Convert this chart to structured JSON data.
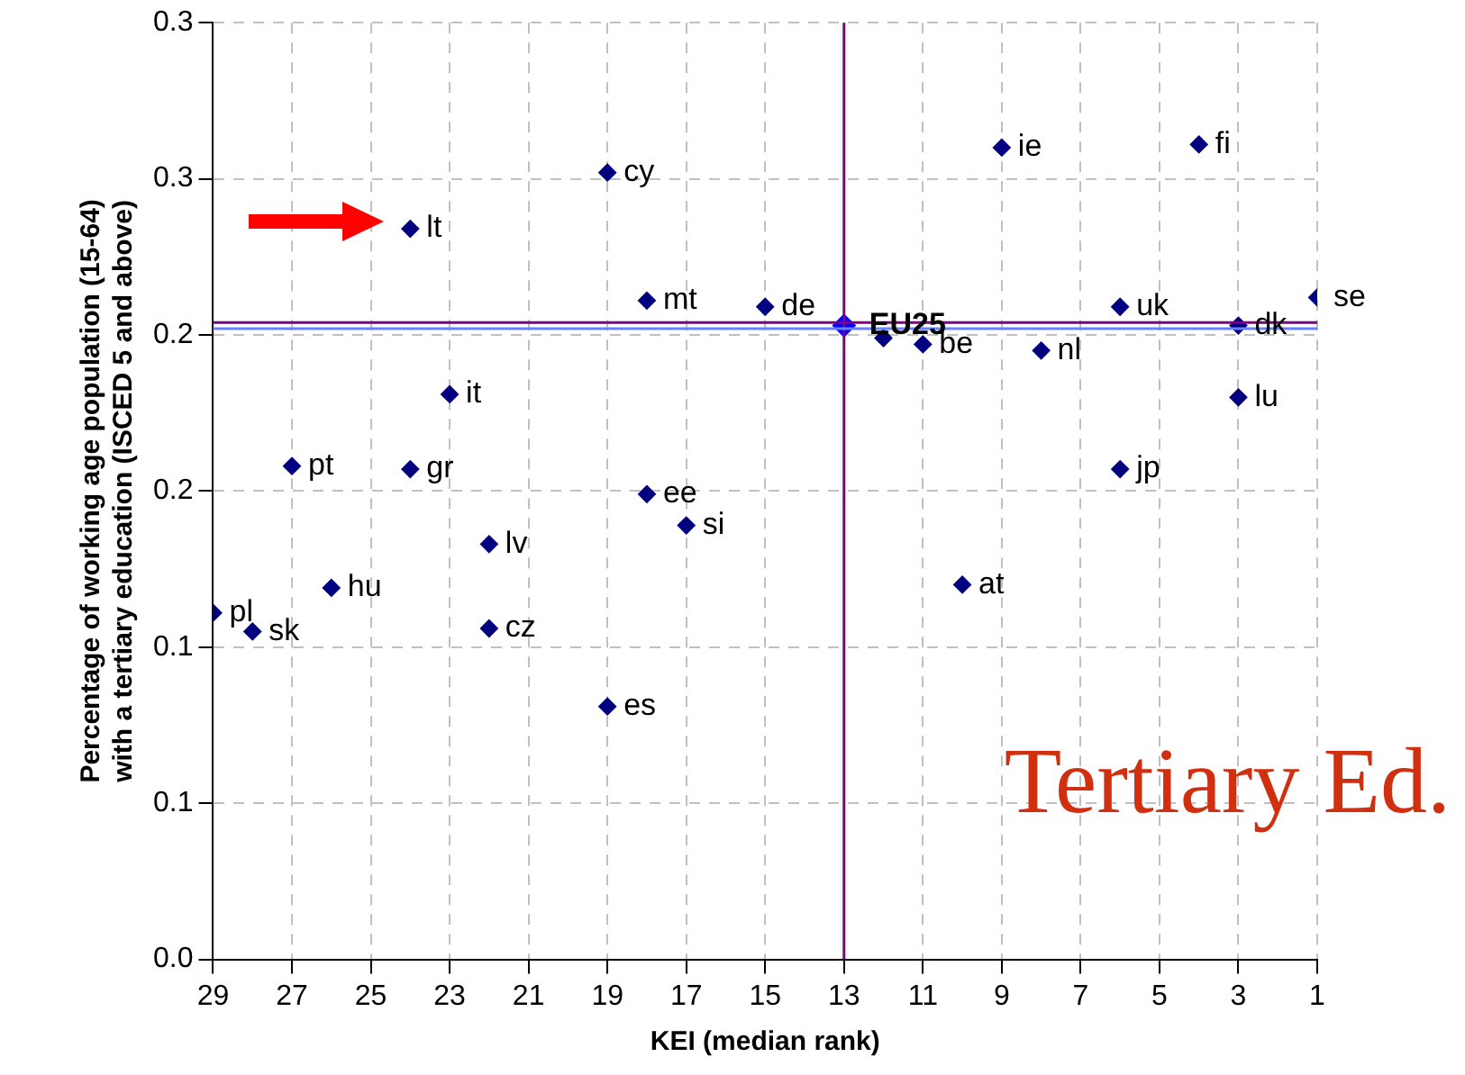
{
  "chart_data": {
    "type": "scatter",
    "xlabel": "KEI (median rank)",
    "ylabel": "Percentage of working age population (15-64)\nwith a tertiary education (ISCED 5 and above)",
    "xlim": [
      29,
      1
    ],
    "xticks": [
      29,
      27,
      25,
      23,
      21,
      19,
      17,
      15,
      13,
      11,
      9,
      7,
      5,
      3,
      1
    ],
    "ylim": [
      0,
      0.3
    ],
    "yticks": [
      {
        "value": 0,
        "label": "0.0"
      },
      {
        "value": 0.05,
        "label": "0.1"
      },
      {
        "value": 0.1,
        "label": "0.1"
      },
      {
        "value": 0.15,
        "label": "0.2"
      },
      {
        "value": 0.2,
        "label": "0.2"
      },
      {
        "value": 0.25,
        "label": "0.3"
      },
      {
        "value": 0.3,
        "label": "0.3"
      }
    ],
    "grid": true,
    "legend": false,
    "marker": "diamond",
    "series": [
      {
        "color": "#000080",
        "x": [
          24,
          19,
          9,
          4,
          18,
          15,
          11,
          8,
          6,
          3,
          1,
          3,
          23,
          27,
          24,
          6,
          18,
          17,
          22,
          26,
          10,
          29,
          28,
          22,
          19,
          12
        ],
        "values": [
          0.234,
          0.252,
          0.26,
          0.261,
          0.211,
          0.209,
          0.197,
          0.195,
          0.209,
          0.203,
          0.212,
          0.18,
          0.181,
          0.158,
          0.157,
          0.157,
          0.149,
          0.139,
          0.133,
          0.119,
          0.12,
          0.111,
          0.105,
          0.106,
          0.081,
          0.199
        ]
      },
      {
        "color": "#0000ff",
        "x": [
          13
        ],
        "values": [
          0.203
        ]
      }
    ],
    "ref_lines": [
      {
        "axis": "x",
        "value": 13,
        "color": "#800080"
      },
      {
        "axis": "y",
        "value": 0.202,
        "color": "#6680ff"
      },
      {
        "axis": "y",
        "value": 0.204,
        "color": "#800080"
      }
    ],
    "annotations": [
      {
        "text": "lt",
        "x": 24,
        "y": 0.234
      },
      {
        "text": "cy",
        "x": 19,
        "y": 0.252
      },
      {
        "text": "ie",
        "x": 9,
        "y": 0.26
      },
      {
        "text": "fi",
        "x": 4,
        "y": 0.261
      },
      {
        "text": "mt",
        "x": 18,
        "y": 0.211
      },
      {
        "text": "de",
        "x": 15,
        "y": 0.209
      },
      {
        "text": "be",
        "x": 11,
        "y": 0.197
      },
      {
        "text": "nl",
        "x": 8,
        "y": 0.195
      },
      {
        "text": "uk",
        "x": 6,
        "y": 0.209
      },
      {
        "text": "dk",
        "x": 3,
        "y": 0.203
      },
      {
        "text": "se",
        "x": 1,
        "y": 0.212
      },
      {
        "text": "lu",
        "x": 3,
        "y": 0.18
      },
      {
        "text": "it",
        "x": 23,
        "y": 0.181
      },
      {
        "text": "pt",
        "x": 27,
        "y": 0.158
      },
      {
        "text": "gr",
        "x": 24,
        "y": 0.157
      },
      {
        "text": "jp",
        "x": 6,
        "y": 0.157
      },
      {
        "text": "ee",
        "x": 18,
        "y": 0.149
      },
      {
        "text": "si",
        "x": 17,
        "y": 0.139
      },
      {
        "text": "lv",
        "x": 22,
        "y": 0.133
      },
      {
        "text": "hu",
        "x": 26,
        "y": 0.119
      },
      {
        "text": "at",
        "x": 10,
        "y": 0.12
      },
      {
        "text": "pl",
        "x": 29,
        "y": 0.111
      },
      {
        "text": "sk",
        "x": 28,
        "y": 0.105
      },
      {
        "text": "cz",
        "x": 22,
        "y": 0.106
      },
      {
        "text": "es",
        "x": 19,
        "y": 0.081
      },
      {
        "text": "EU25",
        "x": 13,
        "y": 0.203
      },
      "Tertiary Ed."
    ]
  }
}
